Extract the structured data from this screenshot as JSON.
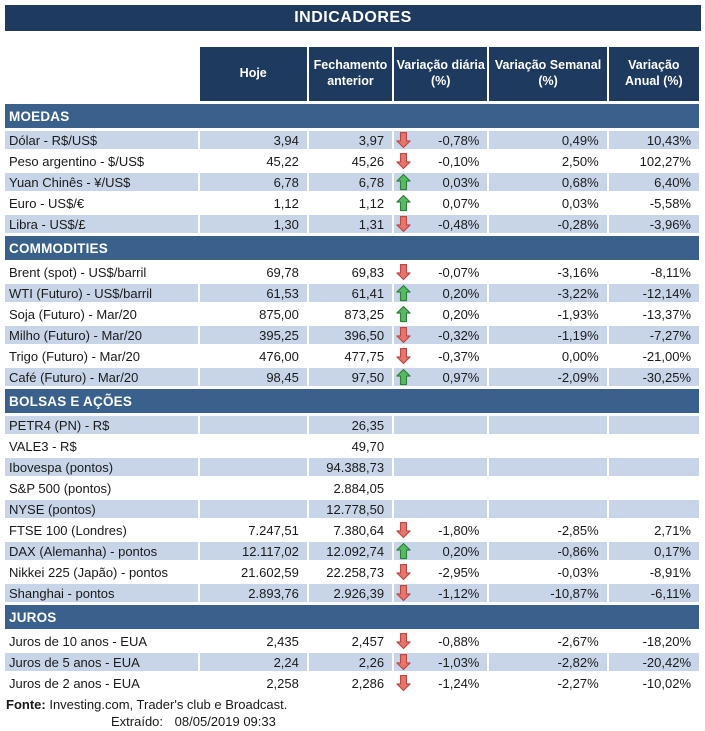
{
  "title": "INDICADORES",
  "columns": [
    "Hoje",
    "Fechamento\nanterior",
    "Variação diária\n(%)",
    "Variação Semanal\n(%)",
    "Variação\nAnual (%)"
  ],
  "sections": [
    {
      "name": "MOEDAS",
      "first_row_shaded": true,
      "rows": [
        {
          "label": "Dólar - R$/US$",
          "hoje": "3,94",
          "fechamento": "3,97",
          "arrow": "down",
          "diaria": "-0,78%",
          "semanal": "0,49%",
          "anual": "10,43%"
        },
        {
          "label": "Peso argentino - $/US$",
          "hoje": "45,22",
          "fechamento": "45,26",
          "arrow": "down",
          "diaria": "-0,10%",
          "semanal": "2,50%",
          "anual": "102,27%"
        },
        {
          "label": "Yuan Chinês - ¥/US$",
          "hoje": "6,78",
          "fechamento": "6,78",
          "arrow": "up",
          "diaria": "0,03%",
          "semanal": "0,68%",
          "anual": "6,40%"
        },
        {
          "label": "Euro - US$/€",
          "hoje": "1,12",
          "fechamento": "1,12",
          "arrow": "up",
          "diaria": "0,07%",
          "semanal": "0,03%",
          "anual": "-5,58%"
        },
        {
          "label": "Libra - US$/£",
          "hoje": "1,30",
          "fechamento": "1,31",
          "arrow": "down",
          "diaria": "-0,48%",
          "semanal": "-0,28%",
          "anual": "-3,96%"
        }
      ]
    },
    {
      "name": "COMMODITIES",
      "first_row_shaded": false,
      "rows": [
        {
          "label": "Brent (spot) - US$/barril",
          "hoje": "69,78",
          "fechamento": "69,83",
          "arrow": "down",
          "diaria": "-0,07%",
          "semanal": "-3,16%",
          "anual": "-8,11%"
        },
        {
          "label": "WTI (Futuro) - US$/barril",
          "hoje": "61,53",
          "fechamento": "61,41",
          "arrow": "up",
          "diaria": "0,20%",
          "semanal": "-3,22%",
          "anual": "-12,14%"
        },
        {
          "label": "Soja (Futuro) - Mar/20",
          "hoje": "875,00",
          "fechamento": "873,25",
          "arrow": "up",
          "diaria": "0,20%",
          "semanal": "-1,93%",
          "anual": "-13,37%"
        },
        {
          "label": "Milho (Futuro) - Mar/20",
          "hoje": "395,25",
          "fechamento": "396,50",
          "arrow": "down",
          "diaria": "-0,32%",
          "semanal": "-1,19%",
          "anual": "-7,27%"
        },
        {
          "label": "Trigo (Futuro) - Mar/20",
          "hoje": "476,00",
          "fechamento": "477,75",
          "arrow": "down",
          "diaria": "-0,37%",
          "semanal": "0,00%",
          "anual": "-21,00%"
        },
        {
          "label": "Café (Futuro) - Mar/20",
          "hoje": "98,45",
          "fechamento": "97,50",
          "arrow": "up",
          "diaria": "0,97%",
          "semanal": "-2,09%",
          "anual": "-30,25%"
        }
      ]
    },
    {
      "name": "BOLSAS E AÇÕES",
      "first_row_shaded": true,
      "rows": [
        {
          "label": "PETR4 (PN) - R$",
          "hoje": "",
          "fechamento": "26,35",
          "arrow": null,
          "diaria": "",
          "semanal": "",
          "anual": ""
        },
        {
          "label": "VALE3 - R$",
          "hoje": "",
          "fechamento": "49,70",
          "arrow": null,
          "diaria": "",
          "semanal": "",
          "anual": ""
        },
        {
          "label": "Ibovespa (pontos)",
          "hoje": "",
          "fechamento": "94.388,73",
          "arrow": null,
          "diaria": "",
          "semanal": "",
          "anual": ""
        },
        {
          "label": "S&P 500 (pontos)",
          "hoje": "",
          "fechamento": "2.884,05",
          "arrow": null,
          "diaria": "",
          "semanal": "",
          "anual": ""
        },
        {
          "label": "NYSE (pontos)",
          "hoje": "",
          "fechamento": "12.778,50",
          "arrow": null,
          "diaria": "",
          "semanal": "",
          "anual": ""
        },
        {
          "label": "FTSE 100 (Londres)",
          "hoje": "7.247,51",
          "fechamento": "7.380,64",
          "arrow": "down",
          "diaria": "-1,80%",
          "semanal": "-2,85%",
          "anual": "2,71%"
        },
        {
          "label": "DAX (Alemanha) - pontos",
          "hoje": "12.117,02",
          "fechamento": "12.092,74",
          "arrow": "up",
          "diaria": "0,20%",
          "semanal": "-0,86%",
          "anual": "0,17%"
        },
        {
          "label": "Nikkei 225 (Japão) - pontos",
          "hoje": "21.602,59",
          "fechamento": "22.258,73",
          "arrow": "down",
          "diaria": "-2,95%",
          "semanal": "-0,03%",
          "anual": "-8,91%"
        },
        {
          "label": "Shanghai - pontos",
          "hoje": "2.893,76",
          "fechamento": "2.926,39",
          "arrow": "down",
          "diaria": "-1,12%",
          "semanal": "-10,87%",
          "anual": "-6,11%"
        }
      ]
    },
    {
      "name": "JUROS",
      "first_row_shaded": false,
      "rows": [
        {
          "label": "Juros de 10 anos - EUA",
          "hoje": "2,435",
          "fechamento": "2,457",
          "arrow": "down",
          "diaria": "-0,88%",
          "semanal": "-2,67%",
          "anual": "-18,20%"
        },
        {
          "label": "Juros de 5 anos - EUA",
          "hoje": "2,24",
          "fechamento": "2,26",
          "arrow": "down",
          "diaria": "-1,03%",
          "semanal": "-2,82%",
          "anual": "-20,42%"
        },
        {
          "label": "Juros de 2 anos - EUA",
          "hoje": "2,258",
          "fechamento": "2,286",
          "arrow": "down",
          "diaria": "-1,24%",
          "semanal": "-2,27%",
          "anual": "-10,02%"
        }
      ]
    }
  ],
  "footer": {
    "fonte_label": "Fonte:",
    "fonte_text": "Investing.com, Trader's club e Broadcast.",
    "extraido_label": "Extraído:",
    "extraido_value": "08/05/2019 09:33"
  },
  "colors": {
    "title_bg": "#1f3a5f",
    "header_bg": "#1f3a5f",
    "section_bg": "#3a618c",
    "stripe_bg": "#c8d5e9",
    "arrow_up_fill": "#55ba62",
    "arrow_up_stroke": "#2e7d3a",
    "arrow_down_fill": "#e8756b",
    "arrow_down_stroke": "#b94743"
  }
}
